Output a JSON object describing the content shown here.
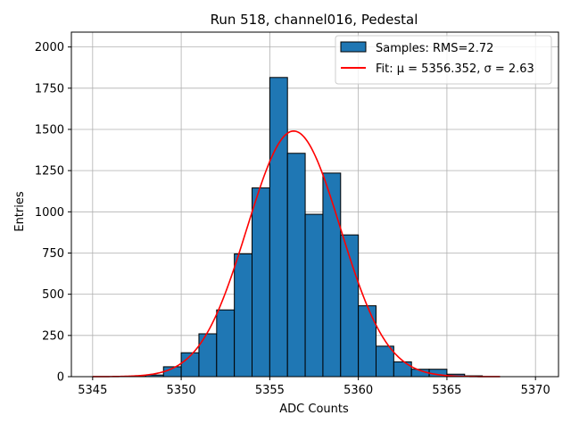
{
  "chart_data": {
    "type": "bar",
    "title": "Run 518, channel016, Pedestal",
    "xlabel": "ADC Counts",
    "ylabel": "Entries",
    "xlim": [
      5343.8,
      5371.3
    ],
    "ylim": [
      0,
      2090
    ],
    "xticks": [
      5345,
      5350,
      5355,
      5360,
      5365,
      5370
    ],
    "yticks": [
      0,
      250,
      500,
      750,
      1000,
      1250,
      1500,
      1750,
      2000
    ],
    "grid": true,
    "legend_position": "top-right",
    "bar_color": "#1f77b4",
    "fit_color": "#ff0000",
    "histogram": {
      "name": "Samples: RMS=2.72",
      "bin_edges": [
        5345,
        5346,
        5347,
        5348,
        5349,
        5350,
        5351,
        5352,
        5353,
        5354,
        5355,
        5356,
        5357,
        5358,
        5359,
        5360,
        5361,
        5362,
        5363,
        5364,
        5365,
        5366,
        5367,
        5368,
        5369,
        5370,
        5371
      ],
      "counts": [
        0,
        0,
        2,
        10,
        60,
        145,
        260,
        405,
        745,
        1145,
        1815,
        1355,
        985,
        1235,
        860,
        430,
        185,
        90,
        45,
        45,
        15,
        5,
        0,
        0,
        0,
        0
      ]
    },
    "fit": {
      "name": "Fit: μ = 5356.352, σ = 2.63",
      "mu": 5356.352,
      "sigma": 2.63,
      "amplitude": 1490,
      "x_range": [
        5345,
        5368
      ]
    }
  }
}
